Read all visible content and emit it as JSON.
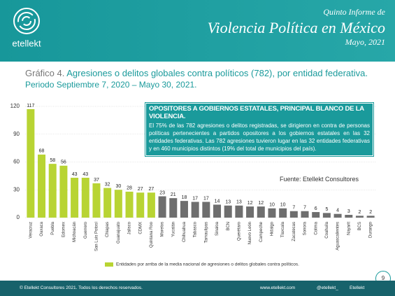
{
  "header": {
    "logo": "etellekt",
    "kicker": "Quinto Informe de",
    "title": "Violencia Política en México",
    "date": "Mayo, 2021"
  },
  "chart_data": {
    "type": "bar",
    "label": "Gráfico 4.",
    "title": "Agresiones o delitos globales contra políticos (782), por entidad federativa.",
    "subtitle": "Periodo Septiembre 7, 2020 – Mayo 30, 2021.",
    "categories": [
      "Veracruz",
      "Oaxaca",
      "Puebla",
      "Edomex",
      "Michoacán",
      "Guerrero",
      "San Luis Potosí",
      "Chiapas",
      "Guanajuato",
      "Jalisco",
      "CDMX",
      "Quintana Roo",
      "Morelos",
      "Yucatán",
      "Chihuahua",
      "Tabasco",
      "Tamaulipas",
      "Sinaloa",
      "BCN",
      "Querétaro",
      "Nuevo León",
      "Campeche",
      "Hidalgo",
      "Tlaxcala",
      "Zacatecas",
      "Sonora",
      "Colima",
      "Coahuila",
      "Aguascalientes",
      "Nayarit",
      "BCS",
      "Durango"
    ],
    "values": [
      117,
      68,
      58,
      56,
      43,
      43,
      37,
      32,
      30,
      28,
      27,
      27,
      23,
      21,
      18,
      17,
      17,
      14,
      13,
      13,
      12,
      12,
      10,
      10,
      7,
      7,
      6,
      5,
      4,
      3,
      2,
      2
    ],
    "colors": [
      "#b8d433",
      "#b8d433",
      "#b8d433",
      "#b8d433",
      "#b8d433",
      "#b8d433",
      "#b8d433",
      "#b8d433",
      "#b8d433",
      "#b8d433",
      "#b8d433",
      "#b8d433",
      "#6e6e6e",
      "#6e6e6e",
      "#6e6e6e",
      "#6e6e6e",
      "#6e6e6e",
      "#6e6e6e",
      "#6e6e6e",
      "#6e6e6e",
      "#6e6e6e",
      "#6e6e6e",
      "#6e6e6e",
      "#6e6e6e",
      "#6e6e6e",
      "#6e6e6e",
      "#6e6e6e",
      "#6e6e6e",
      "#6e6e6e",
      "#6e6e6e",
      "#6e6e6e",
      "#6e6e6e"
    ],
    "ylim": [
      0,
      120
    ],
    "yticks": [
      0,
      30,
      60,
      90,
      120
    ],
    "grid": true,
    "legend": {
      "label": "Entidades por arriba de la media nacional de agresiones o delitos globales contra políticos.",
      "color": "#b8d433"
    }
  },
  "callout": {
    "title": "OPOSITORES A GOBIERNOS ESTATALES, PRINCIPAL BLANCO DE LA VIOLENCIA.",
    "text": "El 75% de las 782 agresiones o delitos registradas, se dirigieron en contra de personas políticas pertenecientes a partidos opositores a los gobiernos estatales en las 32 entidades federativas. Las 782 agresiones tuvieron lugar en las 32 entidades federativas y en 460 municipios distintos (19% del total de municipios del país)."
  },
  "source": "Fuente: Etellekt Consultores",
  "page_number": "9",
  "footer": {
    "copyright": "© Etellekt Consultores 2021.  Todos los derechos reservados.",
    "web": "www.etellekt.com",
    "twitter": "@etellekt_",
    "facebook": "Etellekt"
  }
}
